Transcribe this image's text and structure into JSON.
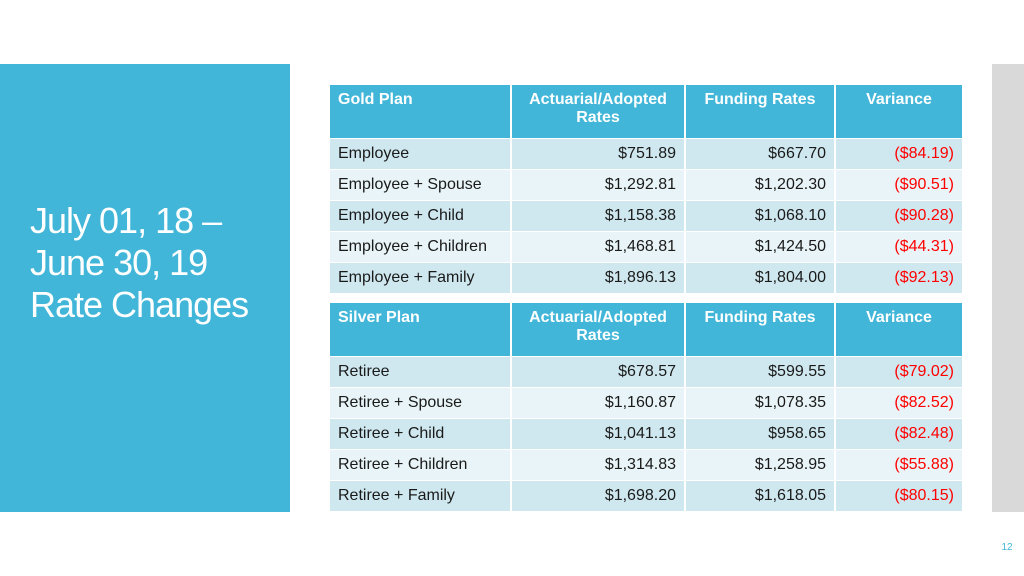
{
  "slide": {
    "title_lines": [
      "July 01, 18 –",
      "June 30, 19",
      "Rate Changes"
    ],
    "page_number": "12"
  },
  "gold": {
    "headers": [
      "Gold Plan",
      "Actuarial/Adopted Rates",
      "Funding Rates",
      "Variance"
    ],
    "rows": [
      [
        "Employee",
        "$751.89",
        "$667.70",
        "($84.19)"
      ],
      [
        "Employee + Spouse",
        "$1,292.81",
        "$1,202.30",
        "($90.51)"
      ],
      [
        "Employee + Child",
        "$1,158.38",
        "$1,068.10",
        "($90.28)"
      ],
      [
        "Employee + Children",
        "$1,468.81",
        "$1,424.50",
        "($44.31)"
      ],
      [
        "Employee + Family",
        "$1,896.13",
        "$1,804.00",
        "($92.13)"
      ]
    ]
  },
  "silver": {
    "headers": [
      "Silver Plan",
      "Actuarial/Adopted Rates",
      "Funding Rates",
      "Variance"
    ],
    "rows": [
      [
        "Retiree",
        "$678.57",
        "$599.55",
        "($79.02)"
      ],
      [
        "Retiree + Spouse",
        "$1,160.87",
        "$1,078.35",
        "($82.52)"
      ],
      [
        "Retiree + Child",
        "$1,041.13",
        "$958.65",
        "($82.48)"
      ],
      [
        "Retiree + Children",
        "$1,314.83",
        "$1,258.95",
        "($55.88)"
      ],
      [
        "Retiree + Family",
        "$1,698.20",
        "$1,618.05",
        "($80.15)"
      ]
    ]
  },
  "colors": {
    "accent": "#41b6d8",
    "variance": "#ff0000",
    "row_dark": "#cfe8ef",
    "row_light": "#e8f4f7"
  }
}
